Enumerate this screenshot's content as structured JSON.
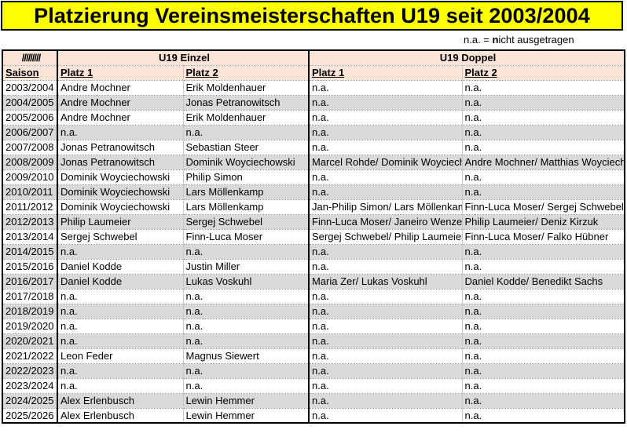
{
  "title": "Platzierung Vereinsmeisterschaften U19 seit 2003/2004",
  "legend": {
    "prefix": "n.a. = ",
    "bold_part": "n",
    "rest": "icht ausgetragen"
  },
  "header": {
    "hatch": "/////////",
    "group_einzel": "U19 Einzel",
    "group_doppel": "U19 Doppel",
    "columns": [
      "Saison",
      "Platz 1",
      "Platz 2",
      "Platz 1",
      "Platz 2"
    ]
  },
  "rows": [
    {
      "saison": "2003/2004",
      "e1": "Andre Mochner",
      "e2": "Erik Moldenhauer",
      "d1": "n.a.",
      "d2": "n.a."
    },
    {
      "saison": "2004/2005",
      "e1": "Andre Mochner",
      "e2": "Jonas Petranowitsch",
      "d1": "n.a.",
      "d2": "n.a."
    },
    {
      "saison": "2005/2006",
      "e1": "Andre Mochner",
      "e2": "Erik Moldenhauer",
      "d1": "n.a.",
      "d2": "n.a."
    },
    {
      "saison": "2006/2007",
      "e1": "n.a.",
      "e2": "n.a.",
      "d1": "n.a.",
      "d2": "n.a."
    },
    {
      "saison": "2007/2008",
      "e1": "Jonas Petranowitsch",
      "e2": "Sebastian Steer",
      "d1": "n.a.",
      "d2": "n.a."
    },
    {
      "saison": "2008/2009",
      "e1": "Jonas Petranowitsch",
      "e2": "Dominik Woyciechowski",
      "d1": "Marcel Rohde/ Dominik Woyciechowski",
      "d2": "Andre Mochner/ Matthias Woyciechowski"
    },
    {
      "saison": "2009/2010",
      "e1": "Dominik Woyciechowski",
      "e2": "Philip Simon",
      "d1": "n.a.",
      "d2": "n.a."
    },
    {
      "saison": "2010/2011",
      "e1": "Dominik Woyciechowski",
      "e2": "Lars Möllenkamp",
      "d1": "n.a.",
      "d2": "n.a."
    },
    {
      "saison": "2011/2012",
      "e1": "Dominik Woyciechowski",
      "e2": "Lars Möllenkamp",
      "d1": "Jan-Philip Simon/ Lars Möllenkamp",
      "d2": "Finn-Luca Moser/ Sergej Schwebel"
    },
    {
      "saison": "2012/2013",
      "e1": "Philip Laumeier",
      "e2": "Sergej Schwebel",
      "d1": "Finn-Luca Moser/ Janeiro Wenzel",
      "d2": "Philip Laumeier/ Deniz Kirzuk"
    },
    {
      "saison": "2013/2014",
      "e1": "Sergej Schwebel",
      "e2": "Finn-Luca Moser",
      "d1": "Sergej Schwebel/ Philip Laumeier",
      "d2": "Finn-Luca Moser/ Falko Hübner"
    },
    {
      "saison": "2014/2015",
      "e1": "n.a.",
      "e2": "n.a.",
      "d1": "n.a.",
      "d2": "n.a."
    },
    {
      "saison": "2015/2016",
      "e1": "Daniel Kodde",
      "e2": "Justin Miller",
      "d1": "n.a.",
      "d2": "n.a."
    },
    {
      "saison": "2016/2017",
      "e1": "Daniel Kodde",
      "e2": "Lukas Voskuhl",
      "d1": "Maria Zer/ Lukas Voskuhl",
      "d2": "Daniel Kodde/ Benedikt Sachs"
    },
    {
      "saison": "2017/2018",
      "e1": "n.a.",
      "e2": "n.a.",
      "d1": "n.a.",
      "d2": "n.a."
    },
    {
      "saison": "2018/2019",
      "e1": "n.a.",
      "e2": "n.a.",
      "d1": "n.a.",
      "d2": "n.a."
    },
    {
      "saison": "2019/2020",
      "e1": "n.a.",
      "e2": "n.a.",
      "d1": "n.a.",
      "d2": "n.a."
    },
    {
      "saison": "2020/2021",
      "e1": "n.a.",
      "e2": "n.a.",
      "d1": "n.a.",
      "d2": "n.a."
    },
    {
      "saison": "2021/2022",
      "e1": "Leon Feder",
      "e2": "Magnus Siewert",
      "d1": "n.a.",
      "d2": "n.a."
    },
    {
      "saison": "2022/2023",
      "e1": "n.a.",
      "e2": "n.a.",
      "d1": "n.a.",
      "d2": "n.a."
    },
    {
      "saison": "2023/2024",
      "e1": "n.a.",
      "e2": "n.a.",
      "d1": "n.a.",
      "d2": "n.a."
    },
    {
      "saison": "2024/2025",
      "e1": "Alex Erlenbusch",
      "e2": "Lewin Hemmer",
      "d1": "n.a.",
      "d2": "n.a."
    },
    {
      "saison": "2025/2026",
      "e1": "Alex Erlenbusch",
      "e2": "Lewin Hemmer",
      "d1": "n.a.",
      "d2": "n.a."
    }
  ]
}
